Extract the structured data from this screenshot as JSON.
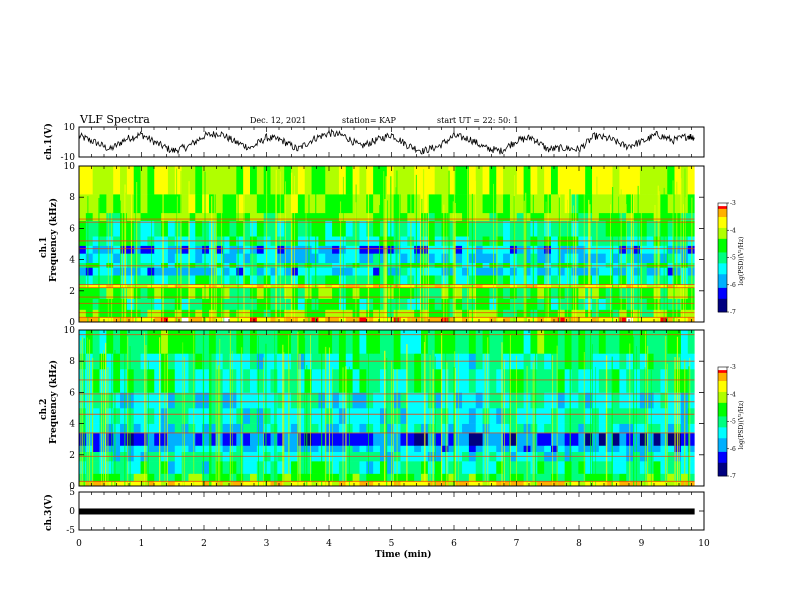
{
  "header": {
    "title": "VLF Spectra",
    "date": "Dec. 12, 2021",
    "station": "station= KAP",
    "start": "start  UT  =   22: 50: 1"
  },
  "colors": {
    "waveform": "#000000",
    "background": "#ffffff",
    "colormap": [
      "#000080",
      "#0000ff",
      "#00b0ff",
      "#00ffff",
      "#00ff80",
      "#00ff00",
      "#b0ff00",
      "#ffff00",
      "#ffb000",
      "#ff0000",
      "#ffffff"
    ]
  },
  "chart_data": [
    {
      "type": "line",
      "panel": "ch1-waveform",
      "ylabel": "ch.1(V)",
      "ylim": [
        -10,
        10
      ],
      "y_ticks": [
        "10",
        "-10"
      ],
      "xlim": [
        0,
        10
      ],
      "x": [
        0,
        0.25,
        0.5,
        0.75,
        1,
        1.25,
        1.5,
        1.75,
        2,
        2.25,
        2.5,
        2.75,
        3,
        3.25,
        3.5,
        3.75,
        4,
        4.25,
        4.5,
        4.75,
        5,
        5.25,
        5.5,
        5.75,
        6,
        6.25,
        6.5,
        6.75,
        7,
        7.25,
        7.5,
        7.75,
        8,
        8.25,
        8.5,
        8.75,
        9,
        9.25,
        9.5,
        9.75,
        9.85
      ],
      "values": [
        4,
        0,
        -5,
        2,
        5,
        -1,
        -6,
        -3,
        4,
        6,
        0,
        -4,
        3,
        1,
        -5,
        2,
        6,
        4,
        -3,
        1,
        5,
        -2,
        -6,
        -3,
        4,
        2,
        -4,
        -6,
        1,
        3,
        -5,
        -4,
        -5,
        4,
        2,
        -3,
        0,
        5,
        1,
        4,
        3
      ]
    },
    {
      "type": "heatmap",
      "panel": "ch1-spectrogram",
      "ylabel": "ch.1\nFrequency (kHz)",
      "ylim": [
        0,
        10
      ],
      "y_ticks": [
        "0",
        "2",
        "4",
        "6",
        "8",
        "10"
      ],
      "xlim": [
        0,
        10
      ],
      "colorbar": {
        "label": "log(PSD)(V²/Hz)",
        "range": [
          -7,
          -3
        ],
        "ticks": [
          "-3",
          "-4",
          "-5",
          "-6",
          "-7"
        ]
      },
      "bands_khz": [
        {
          "from": 0,
          "to": 0.3,
          "log_psd": -3.4
        },
        {
          "from": 0.3,
          "to": 0.8,
          "log_psd": -4.4
        },
        {
          "from": 0.8,
          "to": 1.5,
          "log_psd": -4.9
        },
        {
          "from": 1.5,
          "to": 2.2,
          "log_psd": -4.6
        },
        {
          "from": 2.2,
          "to": 2.4,
          "log_psd": -3.8
        },
        {
          "from": 2.4,
          "to": 3.0,
          "log_psd": -5.0
        },
        {
          "from": 3.0,
          "to": 3.5,
          "log_psd": -5.7
        },
        {
          "from": 3.5,
          "to": 3.8,
          "log_psd": -5.0
        },
        {
          "from": 3.8,
          "to": 4.4,
          "log_psd": -5.6
        },
        {
          "from": 4.4,
          "to": 4.9,
          "log_psd": -5.8
        },
        {
          "from": 4.9,
          "to": 5.5,
          "log_psd": -5.1
        },
        {
          "from": 5.5,
          "to": 6.5,
          "log_psd": -4.9
        },
        {
          "from": 6.5,
          "to": 7.0,
          "log_psd": -4.4
        },
        {
          "from": 7.0,
          "to": 8.2,
          "log_psd": -4.3
        },
        {
          "from": 8.2,
          "to": 10.0,
          "log_psd": -4.0
        }
      ],
      "lines_khz": [
        0.3,
        0.6,
        1.2,
        1.6,
        2.2,
        2.4,
        3.6,
        4.7,
        5.2,
        6.4,
        6.6
      ]
    },
    {
      "type": "heatmap",
      "panel": "ch2-spectrogram",
      "ylabel": "ch.2\nFrequency (kHz)",
      "ylim": [
        0,
        10
      ],
      "y_ticks": [
        "0",
        "2",
        "4",
        "6",
        "8",
        "10"
      ],
      "xlim": [
        0,
        10
      ],
      "colorbar": {
        "label": "log(PSD)(V²/Hz)",
        "range": [
          -7,
          -3
        ],
        "ticks": [
          "-3",
          "-4",
          "-5",
          "-6",
          "-7"
        ]
      },
      "bands_khz": [
        {
          "from": 0,
          "to": 0.3,
          "log_psd": -3.6
        },
        {
          "from": 0.3,
          "to": 0.8,
          "log_psd": -4.7
        },
        {
          "from": 0.8,
          "to": 1.6,
          "log_psd": -5.2
        },
        {
          "from": 1.6,
          "to": 2.2,
          "log_psd": -5.3
        },
        {
          "from": 2.2,
          "to": 2.6,
          "log_psd": -5.7
        },
        {
          "from": 2.6,
          "to": 3.4,
          "log_psd": -6.2
        },
        {
          "from": 3.4,
          "to": 4.0,
          "log_psd": -5.4
        },
        {
          "from": 4.0,
          "to": 5.0,
          "log_psd": -5.3
        },
        {
          "from": 5.0,
          "to": 6.0,
          "log_psd": -5.4
        },
        {
          "from": 6.0,
          "to": 7.5,
          "log_psd": -5.1
        },
        {
          "from": 7.5,
          "to": 8.5,
          "log_psd": -5.2
        },
        {
          "from": 8.5,
          "to": 10.0,
          "log_psd": -4.8
        }
      ],
      "lines_khz": [
        0.3,
        1.9,
        3.4,
        4.6,
        5.4,
        5.9,
        6.8,
        8.0,
        9.7
      ]
    },
    {
      "type": "line",
      "panel": "ch3-waveform",
      "ylabel": "ch.3(V)",
      "ylim": [
        -5,
        5
      ],
      "y_ticks": [
        "5",
        "0",
        "-5"
      ],
      "xlim": [
        0,
        10
      ],
      "x": [
        0,
        9.85
      ],
      "values": [
        0,
        0
      ],
      "xlabel": "Time  (min)",
      "x_ticks": [
        "0",
        "1",
        "2",
        "3",
        "4",
        "5",
        "6",
        "7",
        "8",
        "9",
        "10"
      ]
    }
  ]
}
